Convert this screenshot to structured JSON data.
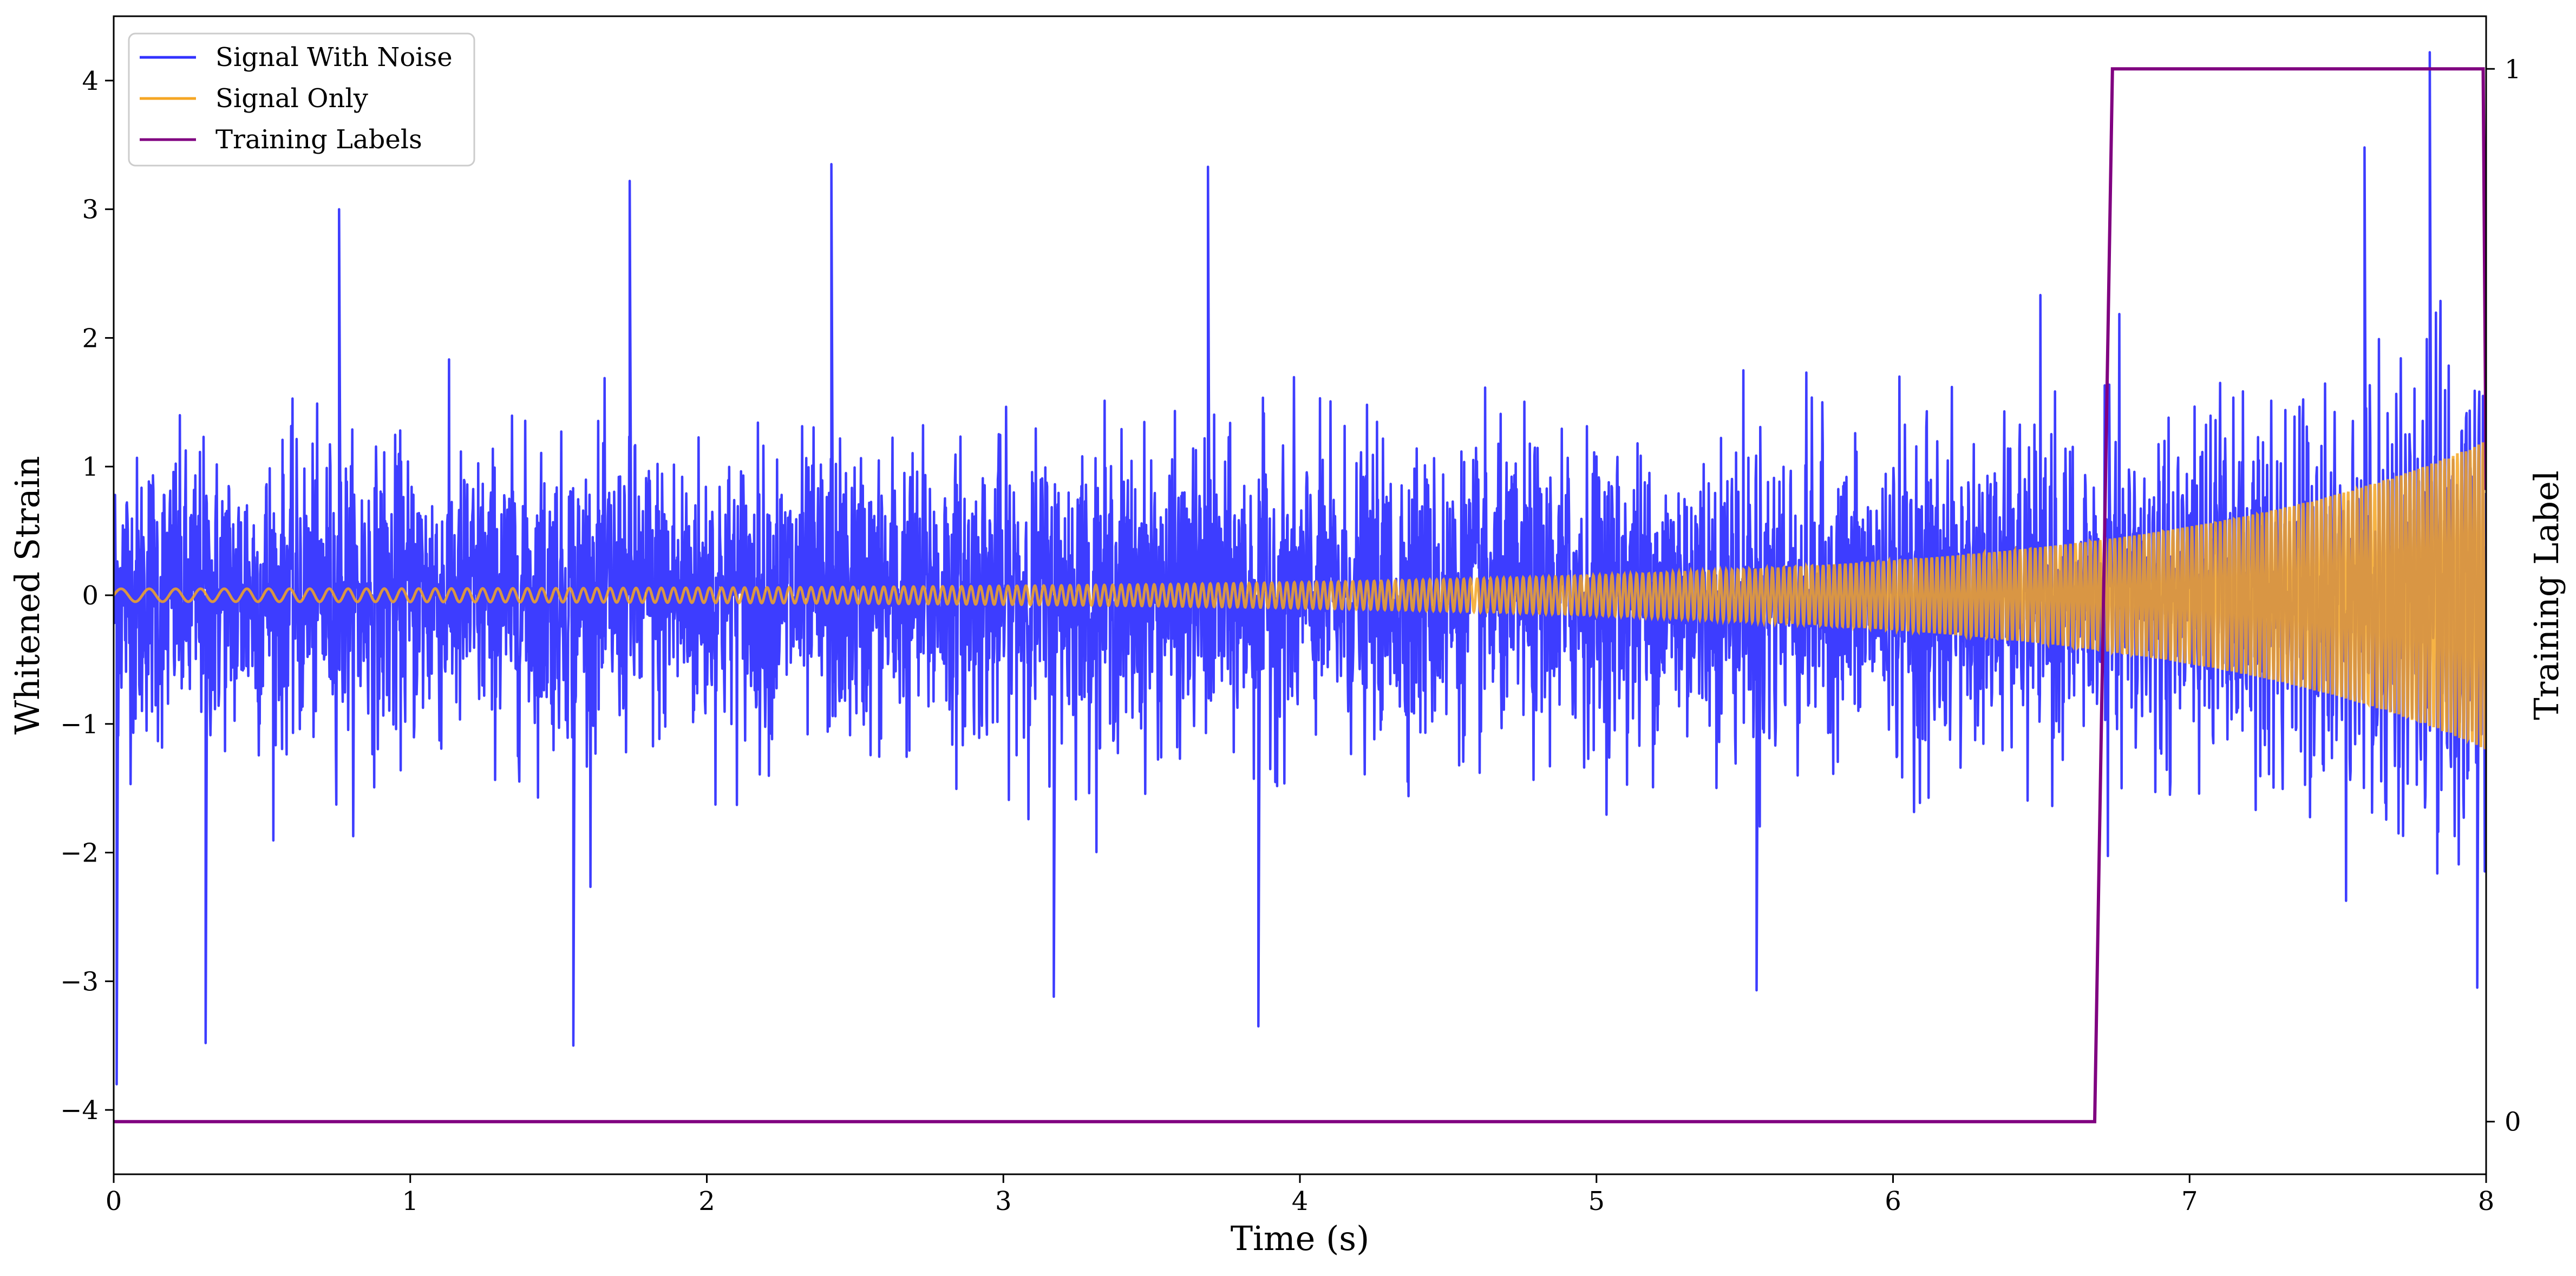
{
  "chart_data": {
    "type": "line",
    "title": "",
    "xlabel": "Time (s)",
    "ylabel": "Whitened Strain",
    "y2label": "Training Label",
    "xlim": [
      0,
      8
    ],
    "ylim": [
      -4.5,
      4.5
    ],
    "y2lim": [
      -0.05,
      1.05
    ],
    "xticks": [
      0,
      1,
      2,
      3,
      4,
      5,
      6,
      7,
      8
    ],
    "yticks": [
      -4,
      -3,
      -2,
      -1,
      0,
      1,
      2,
      3,
      4
    ],
    "y2ticks": [
      0,
      1
    ],
    "grid": false,
    "legend_position": "top-left",
    "series": [
      {
        "name": "Signal With Noise",
        "color": "#3333ff",
        "axis": "left",
        "description_values": {
          "t_start": 0,
          "t_end": 8,
          "typical_abs_max": 1.6,
          "peaks": [
            {
              "x": 0.01,
              "y": -3.8
            },
            {
              "x": 0.31,
              "y": -3.48
            },
            {
              "x": 0.76,
              "y": 3.0
            },
            {
              "x": 1.55,
              "y": -3.5
            },
            {
              "x": 1.74,
              "y": 3.22
            },
            {
              "x": 2.42,
              "y": 3.35
            },
            {
              "x": 3.17,
              "y": -3.12
            },
            {
              "x": 3.69,
              "y": 3.33
            },
            {
              "x": 3.86,
              "y": -3.35
            },
            {
              "x": 5.54,
              "y": -3.07
            },
            {
              "x": 7.81,
              "y": 4.22
            },
            {
              "x": 7.59,
              "y": 3.48
            },
            {
              "x": 7.97,
              "y": -3.05
            }
          ]
        }
      },
      {
        "name": "Signal Only",
        "color": "#f5a623",
        "axis": "left",
        "description_values": {
          "type": "chirp",
          "t_start": 0,
          "t_end": 8,
          "amplitude_start": 0.05,
          "amplitude_end": 1.2,
          "frequency_start_hz": 10,
          "frequency_end_hz": 70
        }
      },
      {
        "name": "Training Labels",
        "color": "#800080",
        "axis": "right",
        "x": [
          0,
          6.68,
          6.74,
          7.99,
          8.0
        ],
        "y": [
          0,
          0,
          1,
          1,
          0.6
        ]
      }
    ]
  }
}
